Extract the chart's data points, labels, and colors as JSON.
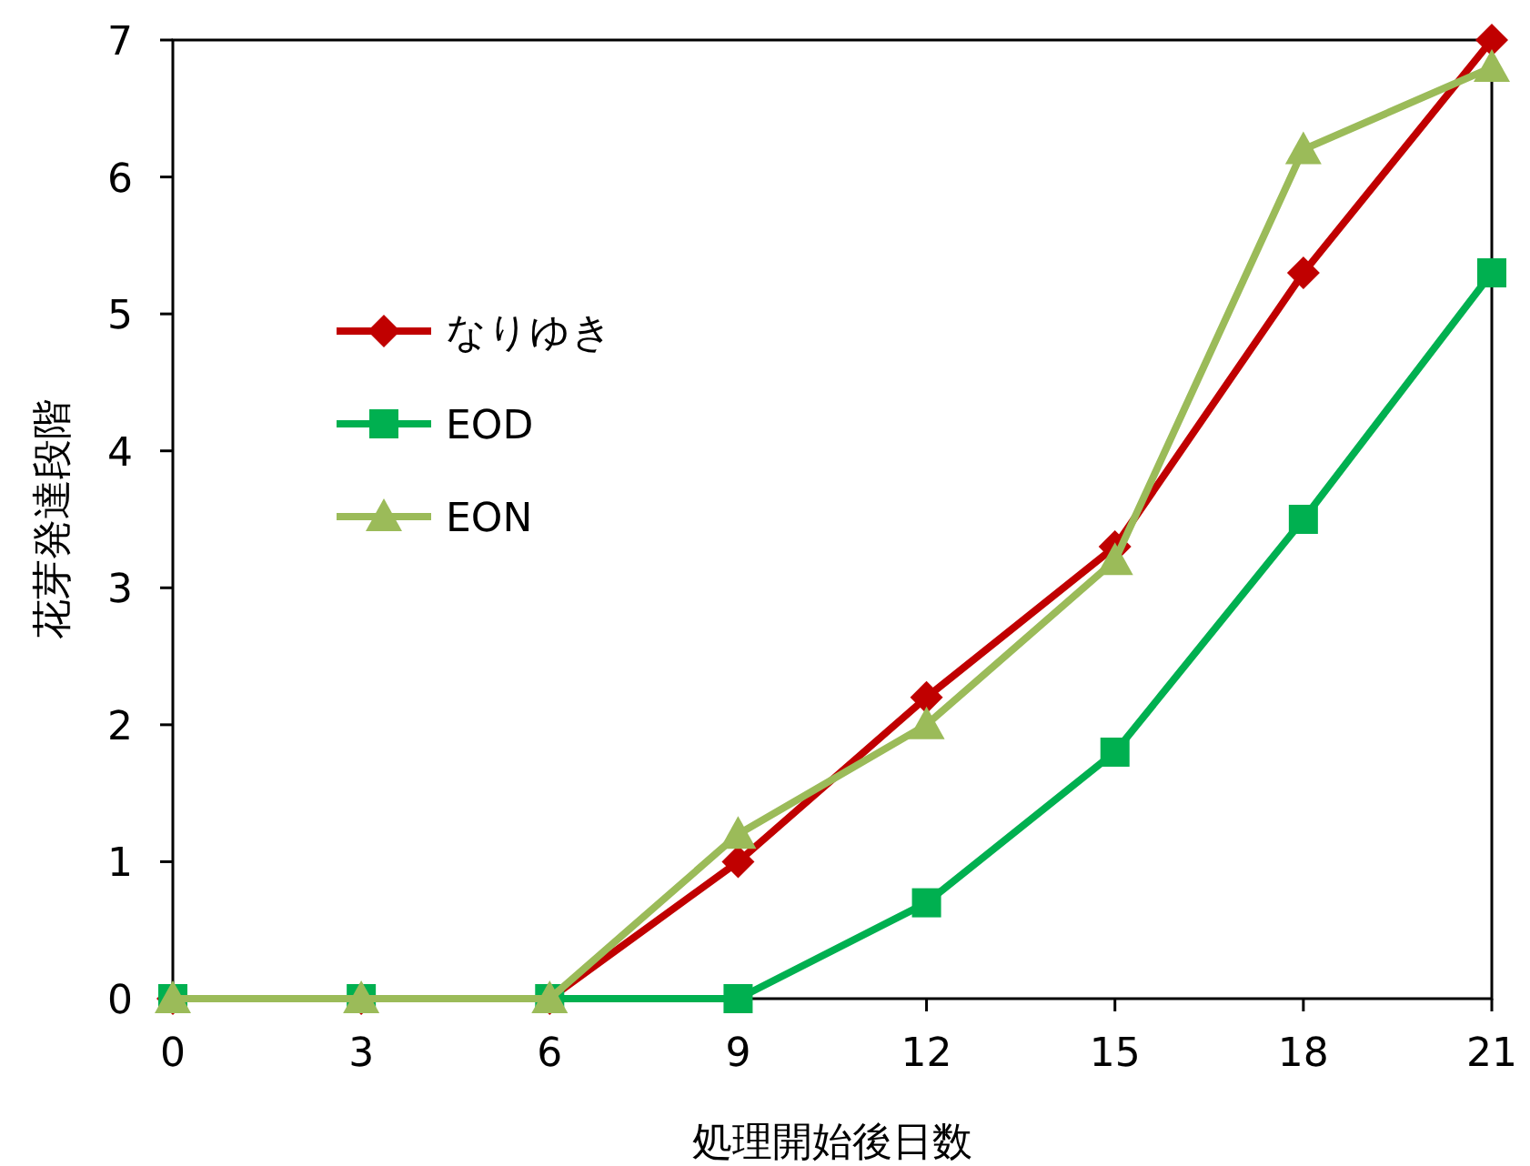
{
  "chart_data": {
    "type": "line",
    "xlabel": "処理開始後日数",
    "ylabel": "花芽発達段階",
    "x": [
      0,
      3,
      6,
      9,
      12,
      15,
      18,
      21
    ],
    "xlim": [
      0,
      21
    ],
    "xticks": [
      0,
      3,
      6,
      9,
      12,
      15,
      18,
      21
    ],
    "ylim": [
      0,
      7
    ],
    "yticks": [
      0,
      1,
      2,
      3,
      4,
      5,
      6,
      7
    ],
    "grid": false,
    "legend": "left",
    "line_style": "solid",
    "series": [
      {
        "name": "なりゆき",
        "color": "#c00000",
        "marker": "diamond",
        "values": [
          0,
          0,
          0,
          1.0,
          2.2,
          3.3,
          5.3,
          7.0
        ]
      },
      {
        "name": "EOD",
        "color": "#00b050",
        "marker": "square",
        "values": [
          0,
          0,
          0,
          0,
          0.7,
          1.8,
          3.5,
          5.3
        ]
      },
      {
        "name": "EON",
        "color": "#9bbb59",
        "marker": "triangle",
        "values": [
          0,
          0,
          0,
          1.2,
          2.0,
          3.2,
          6.2,
          6.8
        ]
      }
    ]
  }
}
